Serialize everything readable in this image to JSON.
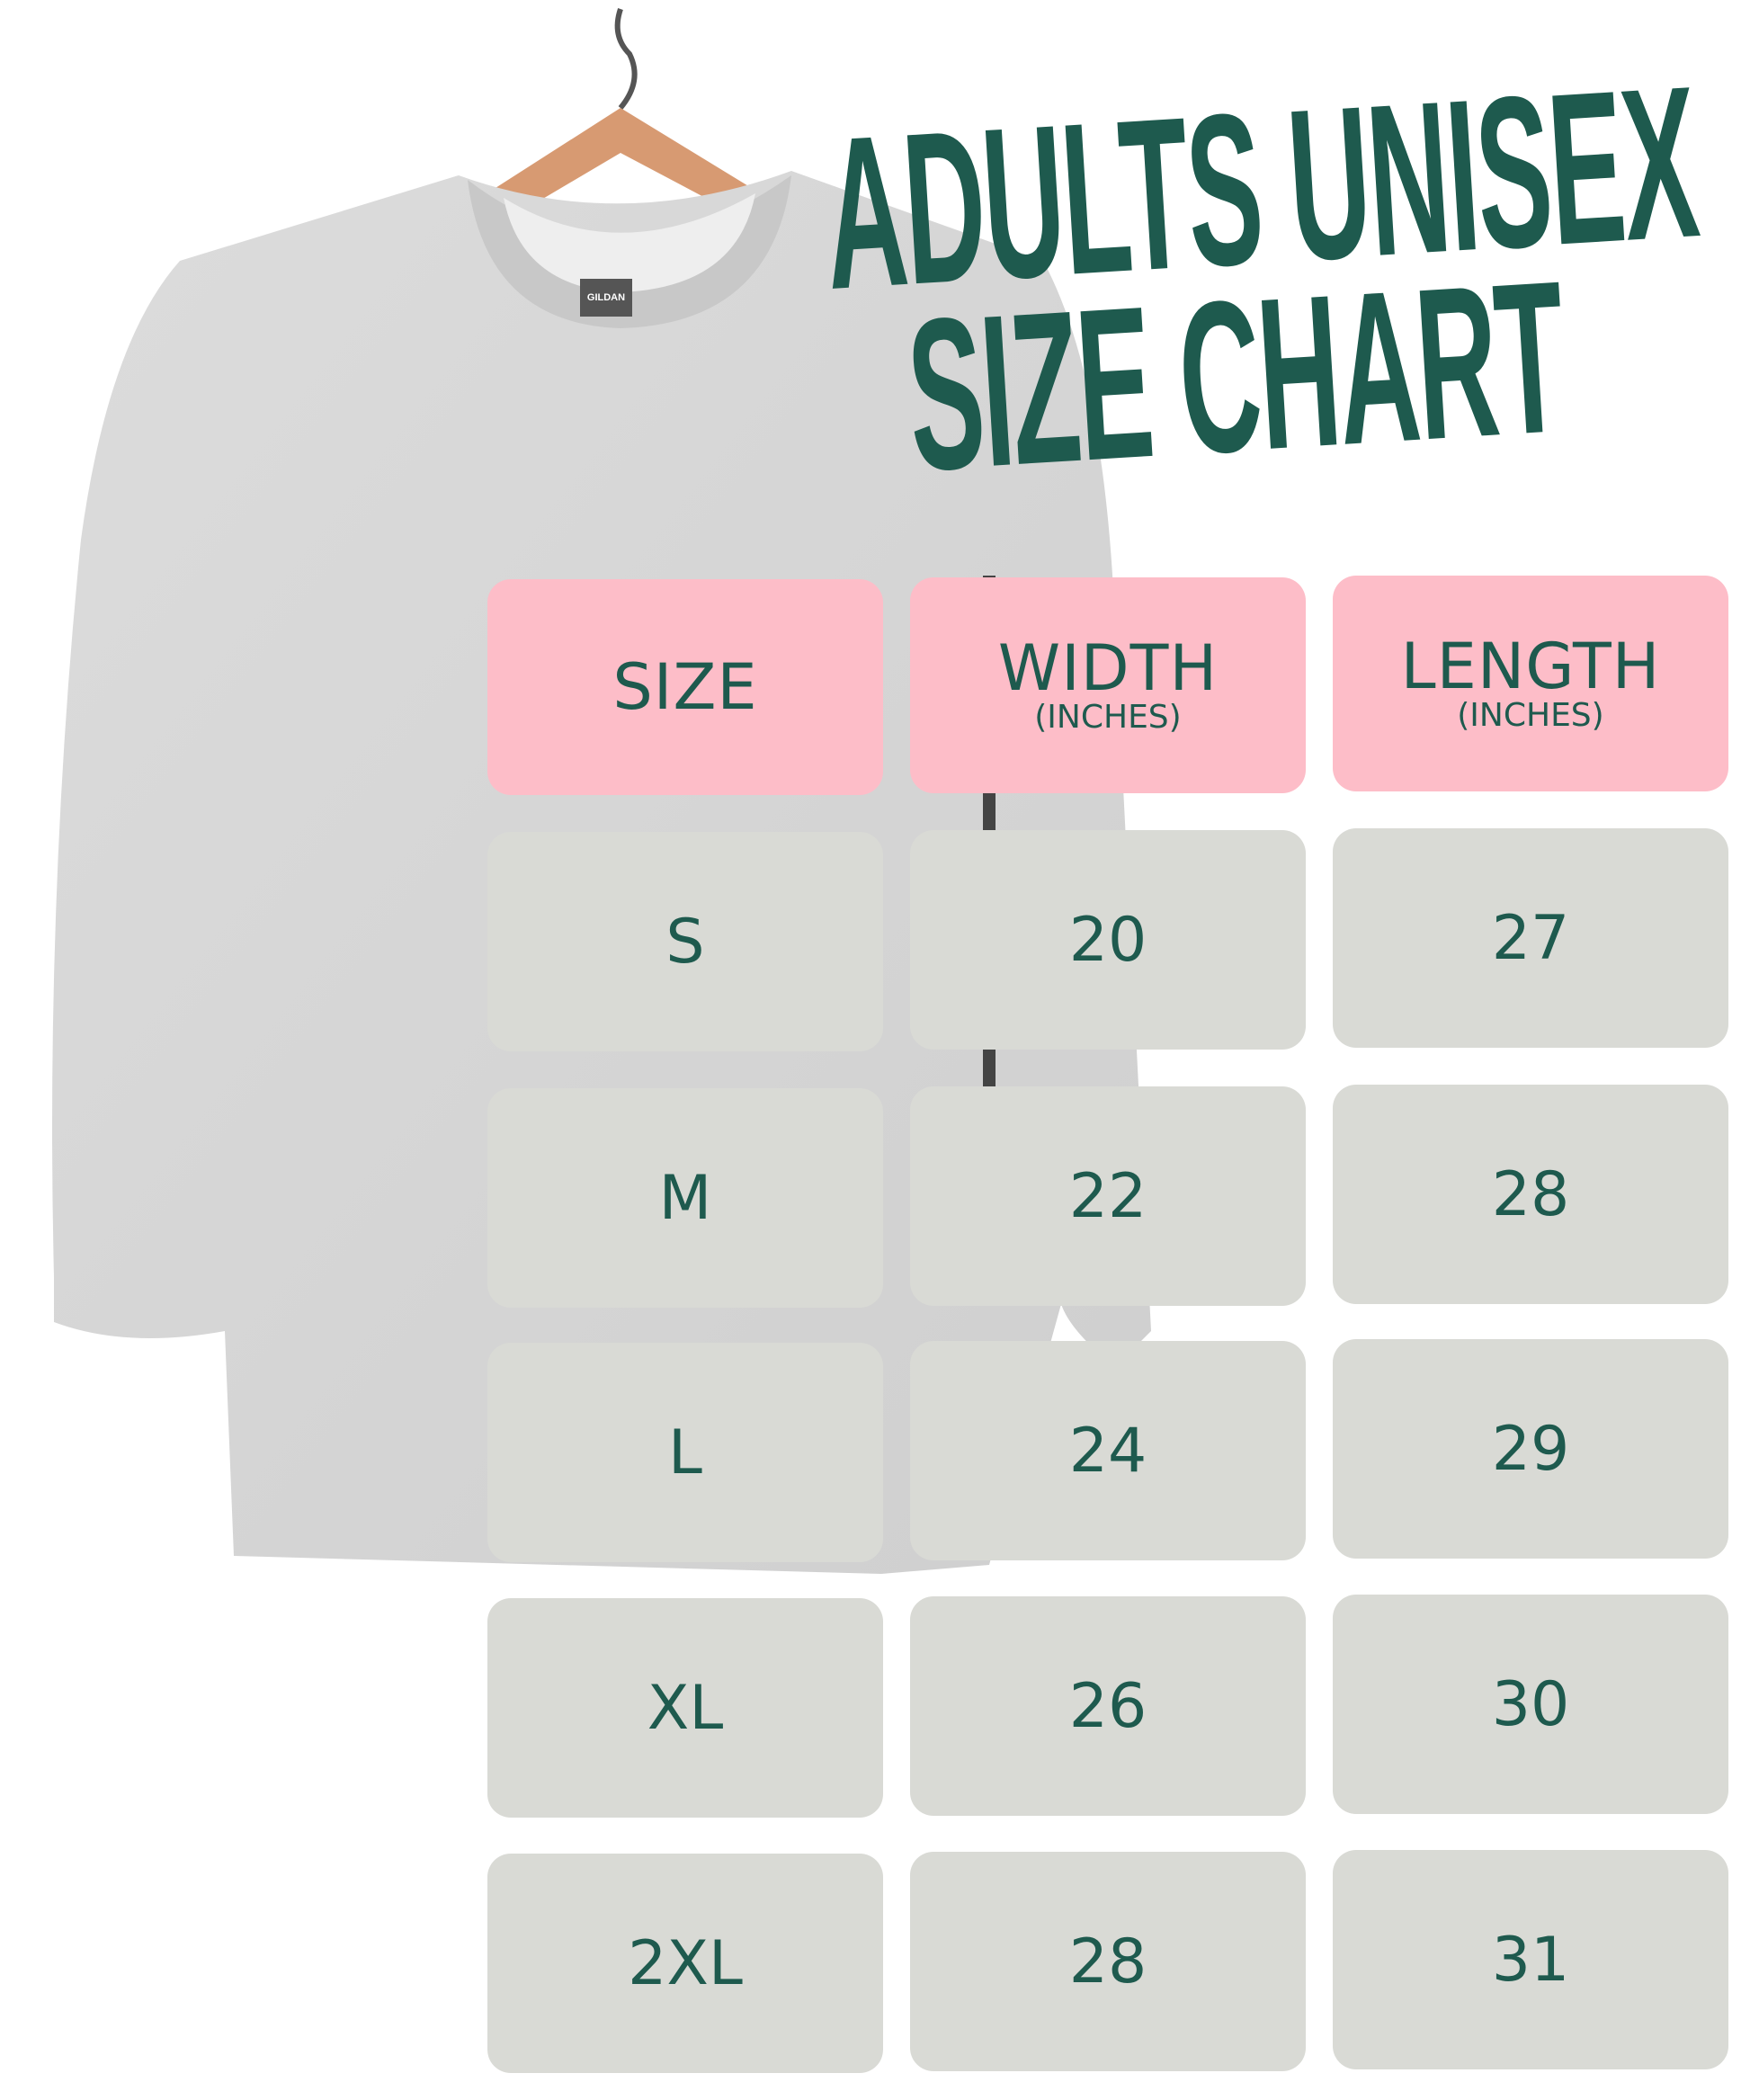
{
  "title": {
    "line1": "ADULTS UNISEX",
    "line2": "SIZE CHART"
  },
  "garment_tag": "GILDAN",
  "colors": {
    "accent_green": "#1e5a4e",
    "header_pink": "#fdbdc8",
    "cell_grey": "#d9dad5",
    "shirt_grey": "#d6d6d6"
  },
  "table": {
    "headers": [
      {
        "label": "SIZE",
        "unit": ""
      },
      {
        "label": "WIDTH",
        "unit": "(INCHES)"
      },
      {
        "label": "LENGTH",
        "unit": "(INCHES)"
      }
    ],
    "rows": [
      [
        "S",
        "20",
        "27"
      ],
      [
        "M",
        "22",
        "28"
      ],
      [
        "L",
        "24",
        "29"
      ],
      [
        "XL",
        "26",
        "30"
      ],
      [
        "2XL",
        "28",
        "31"
      ]
    ]
  }
}
